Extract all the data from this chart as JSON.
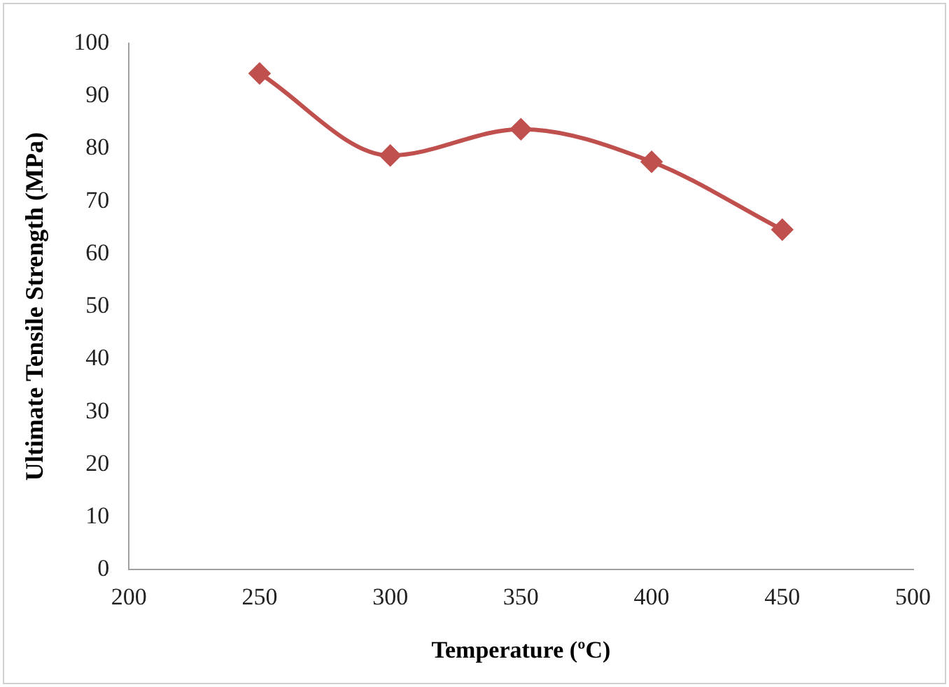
{
  "chart_data": {
    "type": "line",
    "xlabel": "Temperature (ºC)",
    "ylabel": "Ultimate Tensile Strength (MPa)",
    "x": [
      250,
      300,
      350,
      400,
      450
    ],
    "series": [
      {
        "color": "#c0504d",
        "values": [
          94.3,
          78.7,
          83.7,
          77.5,
          64.6
        ]
      }
    ],
    "xlim": [
      200,
      500
    ],
    "xticks": [
      200,
      250,
      300,
      350,
      400,
      450,
      500
    ],
    "ylim": [
      0,
      100
    ],
    "yticks": [
      0,
      10,
      20,
      30,
      40,
      50,
      60,
      70,
      80,
      90,
      100
    ],
    "grid": false,
    "legend": false,
    "marker": "diamond",
    "line_style": "solid"
  }
}
